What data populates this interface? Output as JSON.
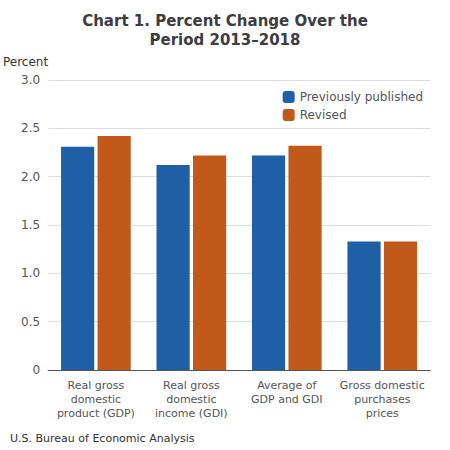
{
  "chart_data": {
    "type": "bar",
    "title": "Chart 1. Percent Change Over the\nPeriod 2013–2018",
    "ylabel": "Percent",
    "categories": [
      "Real gross\ndomestic\nproduct (GDP)",
      "Real gross\ndomestic\nincome (GDI)",
      "Average of\nGDP and GDI",
      "Gross domestic\npurchases\nprices"
    ],
    "series": [
      {
        "name": "Previously published",
        "color": "#1F5FA6",
        "values": [
          2.31,
          2.12,
          2.22,
          1.33
        ]
      },
      {
        "name": "Revised",
        "color": "#C0591A",
        "values": [
          2.42,
          2.22,
          2.32,
          1.33
        ]
      }
    ],
    "ylim": [
      0,
      3.0
    ],
    "yticks": [
      0,
      0.5,
      {
        "value": 1,
        "label": "1.0"
      },
      1.5,
      {
        "value": 2,
        "label": "2.0"
      },
      2.5,
      {
        "value": 3,
        "label": "3.0"
      }
    ],
    "grid": true,
    "legend": "upper right",
    "footnote": "U.S. Bureau of Economic Analysis"
  }
}
